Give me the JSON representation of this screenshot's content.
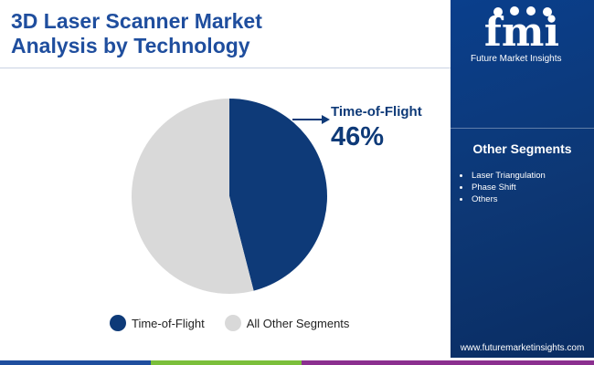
{
  "title_line1": "3D Laser Scanner Market",
  "title_line2": "Analysis by Technology",
  "chart_data": {
    "type": "pie",
    "title": "3D Laser Scanner Market Analysis by Technology",
    "slices": [
      {
        "label": "Time-of-Flight",
        "value": 46,
        "color": "#0e3a78"
      },
      {
        "label": "All Other Segments",
        "value": 54,
        "color": "#d9d9d9"
      }
    ],
    "callout": {
      "label": "Time-of-Flight",
      "value": "46%"
    },
    "legend_position": "bottom"
  },
  "legend": [
    {
      "label": "Time-of-Flight",
      "color": "#0e3a78"
    },
    {
      "label": "All Other Segments",
      "color": "#d9d9d9"
    }
  ],
  "sidebar": {
    "logo_text": "Future Market Insights",
    "logo_letters": "fmi",
    "heading": "Other Segments",
    "items": [
      "Laser Triangulation",
      "Phase Shift",
      "Others"
    ],
    "website": "www.futuremarketinsights.com"
  },
  "bottom_bar_colors": [
    "#1f4e9e",
    "#7bbf3b",
    "#8b2f8f"
  ]
}
